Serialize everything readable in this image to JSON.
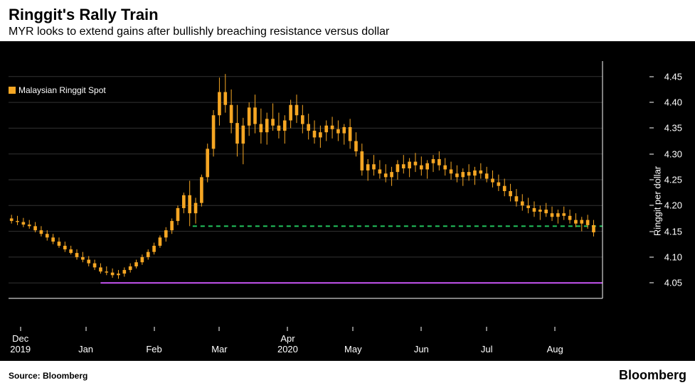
{
  "header": {
    "title": "Ringgit's Rally Train",
    "subtitle": "MYR looks to extend gains after bullishly breaching resistance versus dollar"
  },
  "legend": {
    "swatch_color": "#f5a623",
    "label": "Malaysian Ringgit Spot"
  },
  "chart": {
    "type": "candlestick",
    "background_color": "#000000",
    "grid_color": "#333333",
    "series_color": "#f5a623",
    "y_axis": {
      "label": "Ringgit per dollar",
      "ticks": [
        4.05,
        4.1,
        4.15,
        4.2,
        4.25,
        4.3,
        4.35,
        4.4,
        4.45
      ],
      "min": 4.02,
      "max": 4.48
    },
    "x_axis": {
      "ticks": [
        {
          "pos": 0.02,
          "label_top": "Dec",
          "label_bottom": "2019"
        },
        {
          "pos": 0.13,
          "label_top": "Jan",
          "label_bottom": ""
        },
        {
          "pos": 0.245,
          "label_top": "Feb",
          "label_bottom": ""
        },
        {
          "pos": 0.355,
          "label_top": "Mar",
          "label_bottom": ""
        },
        {
          "pos": 0.47,
          "label_top": "Apr",
          "label_bottom": "2020"
        },
        {
          "pos": 0.58,
          "label_top": "May",
          "label_bottom": ""
        },
        {
          "pos": 0.695,
          "label_top": "Jun",
          "label_bottom": ""
        },
        {
          "pos": 0.805,
          "label_top": "Jul",
          "label_bottom": ""
        },
        {
          "pos": 0.92,
          "label_top": "Aug",
          "label_bottom": ""
        }
      ]
    },
    "reference_lines": [
      {
        "y": 4.16,
        "x_start": 0.31,
        "x_end": 1.0,
        "color": "#22c55e",
        "dash": "6,5",
        "width": 2
      },
      {
        "y": 4.05,
        "x_start": 0.155,
        "x_end": 1.0,
        "color": "#c855f5",
        "dash": "none",
        "width": 2
      }
    ],
    "candles": [
      {
        "x": 0.005,
        "o": 4.175,
        "h": 4.182,
        "l": 4.165,
        "c": 4.17
      },
      {
        "x": 0.015,
        "o": 4.17,
        "h": 4.18,
        "l": 4.162,
        "c": 4.168
      },
      {
        "x": 0.025,
        "o": 4.168,
        "h": 4.176,
        "l": 4.158,
        "c": 4.163
      },
      {
        "x": 0.035,
        "o": 4.163,
        "h": 4.172,
        "l": 4.155,
        "c": 4.16
      },
      {
        "x": 0.045,
        "o": 4.16,
        "h": 4.168,
        "l": 4.148,
        "c": 4.152
      },
      {
        "x": 0.055,
        "o": 4.152,
        "h": 4.16,
        "l": 4.14,
        "c": 4.145
      },
      {
        "x": 0.065,
        "o": 4.145,
        "h": 4.152,
        "l": 4.132,
        "c": 4.138
      },
      {
        "x": 0.075,
        "o": 4.138,
        "h": 4.145,
        "l": 4.125,
        "c": 4.13
      },
      {
        "x": 0.085,
        "o": 4.13,
        "h": 4.138,
        "l": 4.118,
        "c": 4.122
      },
      {
        "x": 0.095,
        "o": 4.122,
        "h": 4.13,
        "l": 4.11,
        "c": 4.115
      },
      {
        "x": 0.105,
        "o": 4.115,
        "h": 4.122,
        "l": 4.105,
        "c": 4.108
      },
      {
        "x": 0.115,
        "o": 4.108,
        "h": 4.115,
        "l": 4.095,
        "c": 4.1
      },
      {
        "x": 0.125,
        "o": 4.1,
        "h": 4.11,
        "l": 4.09,
        "c": 4.095
      },
      {
        "x": 0.135,
        "o": 4.095,
        "h": 4.102,
        "l": 4.082,
        "c": 4.088
      },
      {
        "x": 0.145,
        "o": 4.088,
        "h": 4.095,
        "l": 4.075,
        "c": 4.08
      },
      {
        "x": 0.155,
        "o": 4.08,
        "h": 4.088,
        "l": 4.068,
        "c": 4.072
      },
      {
        "x": 0.165,
        "o": 4.072,
        "h": 4.082,
        "l": 4.065,
        "c": 4.07
      },
      {
        "x": 0.175,
        "o": 4.07,
        "h": 4.078,
        "l": 4.06,
        "c": 4.065
      },
      {
        "x": 0.185,
        "o": 4.065,
        "h": 4.075,
        "l": 4.058,
        "c": 4.068
      },
      {
        "x": 0.195,
        "o": 4.068,
        "h": 4.08,
        "l": 4.062,
        "c": 4.075
      },
      {
        "x": 0.205,
        "o": 4.075,
        "h": 4.088,
        "l": 4.07,
        "c": 4.082
      },
      {
        "x": 0.215,
        "o": 4.082,
        "h": 4.095,
        "l": 4.078,
        "c": 4.09
      },
      {
        "x": 0.225,
        "o": 4.09,
        "h": 4.105,
        "l": 4.085,
        "c": 4.1
      },
      {
        "x": 0.235,
        "o": 4.1,
        "h": 4.115,
        "l": 4.095,
        "c": 4.11
      },
      {
        "x": 0.245,
        "o": 4.11,
        "h": 4.128,
        "l": 4.105,
        "c": 4.122
      },
      {
        "x": 0.255,
        "o": 4.122,
        "h": 4.142,
        "l": 4.118,
        "c": 4.138
      },
      {
        "x": 0.265,
        "o": 4.138,
        "h": 4.158,
        "l": 4.13,
        "c": 4.152
      },
      {
        "x": 0.275,
        "o": 4.152,
        "h": 4.175,
        "l": 4.145,
        "c": 4.17
      },
      {
        "x": 0.285,
        "o": 4.17,
        "h": 4.2,
        "l": 4.162,
        "c": 4.195
      },
      {
        "x": 0.295,
        "o": 4.195,
        "h": 4.225,
        "l": 4.185,
        "c": 4.22
      },
      {
        "x": 0.305,
        "o": 4.22,
        "h": 4.248,
        "l": 4.16,
        "c": 4.185
      },
      {
        "x": 0.315,
        "o": 4.185,
        "h": 4.215,
        "l": 4.165,
        "c": 4.205
      },
      {
        "x": 0.325,
        "o": 4.205,
        "h": 4.26,
        "l": 4.198,
        "c": 4.255
      },
      {
        "x": 0.335,
        "o": 4.255,
        "h": 4.32,
        "l": 4.245,
        "c": 4.31
      },
      {
        "x": 0.345,
        "o": 4.31,
        "h": 4.385,
        "l": 4.295,
        "c": 4.375
      },
      {
        "x": 0.355,
        "o": 4.375,
        "h": 4.448,
        "l": 4.355,
        "c": 4.42
      },
      {
        "x": 0.365,
        "o": 4.42,
        "h": 4.455,
        "l": 4.38,
        "c": 4.395
      },
      {
        "x": 0.375,
        "o": 4.395,
        "h": 4.425,
        "l": 4.34,
        "c": 4.36
      },
      {
        "x": 0.385,
        "o": 4.36,
        "h": 4.395,
        "l": 4.295,
        "c": 4.32
      },
      {
        "x": 0.395,
        "o": 4.32,
        "h": 4.37,
        "l": 4.28,
        "c": 4.355
      },
      {
        "x": 0.405,
        "o": 4.355,
        "h": 4.4,
        "l": 4.335,
        "c": 4.39
      },
      {
        "x": 0.415,
        "o": 4.39,
        "h": 4.415,
        "l": 4.34,
        "c": 4.358
      },
      {
        "x": 0.425,
        "o": 4.358,
        "h": 4.388,
        "l": 4.32,
        "c": 4.342
      },
      {
        "x": 0.435,
        "o": 4.342,
        "h": 4.38,
        "l": 4.318,
        "c": 4.368
      },
      {
        "x": 0.445,
        "o": 4.368,
        "h": 4.398,
        "l": 4.345,
        "c": 4.355
      },
      {
        "x": 0.455,
        "o": 4.355,
        "h": 4.38,
        "l": 4.33,
        "c": 4.345
      },
      {
        "x": 0.465,
        "o": 4.345,
        "h": 4.375,
        "l": 4.32,
        "c": 4.365
      },
      {
        "x": 0.475,
        "o": 4.365,
        "h": 4.405,
        "l": 4.35,
        "c": 4.395
      },
      {
        "x": 0.485,
        "o": 4.395,
        "h": 4.415,
        "l": 4.36,
        "c": 4.375
      },
      {
        "x": 0.495,
        "o": 4.375,
        "h": 4.395,
        "l": 4.34,
        "c": 4.358
      },
      {
        "x": 0.505,
        "o": 4.358,
        "h": 4.378,
        "l": 4.328,
        "c": 4.345
      },
      {
        "x": 0.515,
        "o": 4.345,
        "h": 4.365,
        "l": 4.32,
        "c": 4.332
      },
      {
        "x": 0.525,
        "o": 4.332,
        "h": 4.355,
        "l": 4.312,
        "c": 4.342
      },
      {
        "x": 0.535,
        "o": 4.342,
        "h": 4.365,
        "l": 4.325,
        "c": 4.355
      },
      {
        "x": 0.545,
        "o": 4.355,
        "h": 4.372,
        "l": 4.33,
        "c": 4.348
      },
      {
        "x": 0.555,
        "o": 4.348,
        "h": 4.365,
        "l": 4.325,
        "c": 4.34
      },
      {
        "x": 0.565,
        "o": 4.34,
        "h": 4.358,
        "l": 4.318,
        "c": 4.352
      },
      {
        "x": 0.575,
        "o": 4.352,
        "h": 4.368,
        "l": 4.31,
        "c": 4.325
      },
      {
        "x": 0.585,
        "o": 4.325,
        "h": 4.342,
        "l": 4.295,
        "c": 4.305
      },
      {
        "x": 0.595,
        "o": 4.305,
        "h": 4.32,
        "l": 4.258,
        "c": 4.268
      },
      {
        "x": 0.605,
        "o": 4.268,
        "h": 4.29,
        "l": 4.248,
        "c": 4.28
      },
      {
        "x": 0.615,
        "o": 4.28,
        "h": 4.298,
        "l": 4.258,
        "c": 4.27
      },
      {
        "x": 0.625,
        "o": 4.27,
        "h": 4.288,
        "l": 4.252,
        "c": 4.262
      },
      {
        "x": 0.635,
        "o": 4.262,
        "h": 4.28,
        "l": 4.245,
        "c": 4.255
      },
      {
        "x": 0.645,
        "o": 4.255,
        "h": 4.275,
        "l": 4.238,
        "c": 4.265
      },
      {
        "x": 0.655,
        "o": 4.265,
        "h": 4.288,
        "l": 4.25,
        "c": 4.28
      },
      {
        "x": 0.665,
        "o": 4.28,
        "h": 4.298,
        "l": 4.262,
        "c": 4.272
      },
      {
        "x": 0.675,
        "o": 4.272,
        "h": 4.292,
        "l": 4.255,
        "c": 4.285
      },
      {
        "x": 0.685,
        "o": 4.285,
        "h": 4.302,
        "l": 4.265,
        "c": 4.278
      },
      {
        "x": 0.695,
        "o": 4.278,
        "h": 4.295,
        "l": 4.258,
        "c": 4.27
      },
      {
        "x": 0.705,
        "o": 4.27,
        "h": 4.288,
        "l": 4.252,
        "c": 4.282
      },
      {
        "x": 0.715,
        "o": 4.282,
        "h": 4.298,
        "l": 4.265,
        "c": 4.29
      },
      {
        "x": 0.725,
        "o": 4.29,
        "h": 4.305,
        "l": 4.268,
        "c": 4.278
      },
      {
        "x": 0.735,
        "o": 4.278,
        "h": 4.292,
        "l": 4.258,
        "c": 4.27
      },
      {
        "x": 0.745,
        "o": 4.27,
        "h": 4.285,
        "l": 4.25,
        "c": 4.262
      },
      {
        "x": 0.755,
        "o": 4.262,
        "h": 4.278,
        "l": 4.245,
        "c": 4.255
      },
      {
        "x": 0.765,
        "o": 4.255,
        "h": 4.272,
        "l": 4.238,
        "c": 4.265
      },
      {
        "x": 0.775,
        "o": 4.265,
        "h": 4.28,
        "l": 4.248,
        "c": 4.258
      },
      {
        "x": 0.785,
        "o": 4.258,
        "h": 4.275,
        "l": 4.24,
        "c": 4.268
      },
      {
        "x": 0.795,
        "o": 4.268,
        "h": 4.282,
        "l": 4.252,
        "c": 4.262
      },
      {
        "x": 0.805,
        "o": 4.262,
        "h": 4.275,
        "l": 4.245,
        "c": 4.252
      },
      {
        "x": 0.815,
        "o": 4.252,
        "h": 4.268,
        "l": 4.235,
        "c": 4.245
      },
      {
        "x": 0.825,
        "o": 4.245,
        "h": 4.26,
        "l": 4.228,
        "c": 4.238
      },
      {
        "x": 0.835,
        "o": 4.238,
        "h": 4.252,
        "l": 4.218,
        "c": 4.228
      },
      {
        "x": 0.845,
        "o": 4.228,
        "h": 4.242,
        "l": 4.208,
        "c": 4.218
      },
      {
        "x": 0.855,
        "o": 4.218,
        "h": 4.232,
        "l": 4.198,
        "c": 4.208
      },
      {
        "x": 0.865,
        "o": 4.208,
        "h": 4.222,
        "l": 4.19,
        "c": 4.2
      },
      {
        "x": 0.875,
        "o": 4.2,
        "h": 4.215,
        "l": 4.185,
        "c": 4.195
      },
      {
        "x": 0.885,
        "o": 4.195,
        "h": 4.208,
        "l": 4.178,
        "c": 4.188
      },
      {
        "x": 0.895,
        "o": 4.188,
        "h": 4.2,
        "l": 4.172,
        "c": 4.192
      },
      {
        "x": 0.905,
        "o": 4.192,
        "h": 4.205,
        "l": 4.178,
        "c": 4.185
      },
      {
        "x": 0.915,
        "o": 4.185,
        "h": 4.198,
        "l": 4.17,
        "c": 4.178
      },
      {
        "x": 0.925,
        "o": 4.178,
        "h": 4.192,
        "l": 4.165,
        "c": 4.185
      },
      {
        "x": 0.935,
        "o": 4.185,
        "h": 4.198,
        "l": 4.172,
        "c": 4.18
      },
      {
        "x": 0.945,
        "o": 4.18,
        "h": 4.192,
        "l": 4.165,
        "c": 4.172
      },
      {
        "x": 0.955,
        "o": 4.172,
        "h": 4.185,
        "l": 4.158,
        "c": 4.165
      },
      {
        "x": 0.965,
        "o": 4.165,
        "h": 4.178,
        "l": 4.15,
        "c": 4.172
      },
      {
        "x": 0.975,
        "o": 4.172,
        "h": 4.182,
        "l": 4.155,
        "c": 4.162
      },
      {
        "x": 0.985,
        "o": 4.162,
        "h": 4.172,
        "l": 4.14,
        "c": 4.148
      }
    ]
  },
  "footer": {
    "source": "Source: Bloomberg",
    "brand": "Bloomberg"
  }
}
